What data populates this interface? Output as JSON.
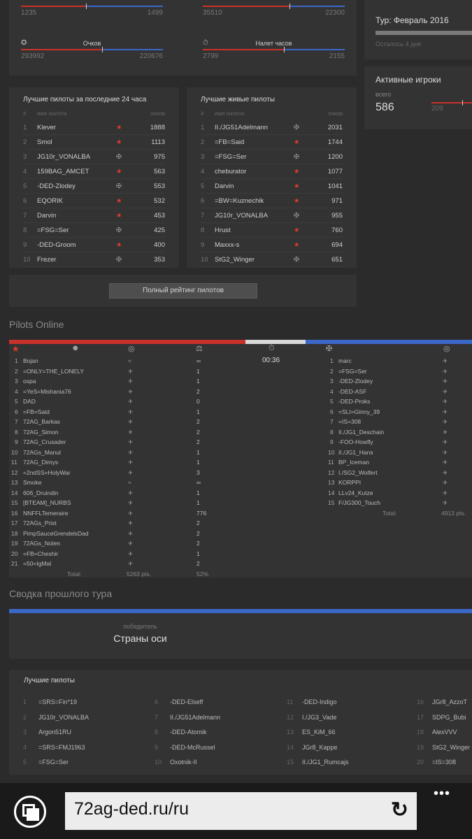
{
  "stats": [
    {
      "label": "",
      "left": "1235",
      "right": "1499",
      "red_fraction": 0.46,
      "icon": "medal-icon"
    },
    {
      "label": "",
      "left": "35510",
      "right": "22300",
      "red_fraction": 0.61,
      "icon": "timer-icon"
    },
    {
      "label": "Очков",
      "left": "293992",
      "right": "220676",
      "red_fraction": 0.57,
      "icon": "medal-icon"
    },
    {
      "label": "Налет часов",
      "left": "2799",
      "right": "2155",
      "red_fraction": 0.57,
      "icon": "timer-icon"
    }
  ],
  "tour": {
    "title": "Тур: Февраль 2016",
    "remaining": "Осталось 4 дня"
  },
  "active_players": {
    "title": "Активные игроки",
    "total_label": "всего",
    "total": "586",
    "red_count": "209"
  },
  "top24": {
    "title": "Лучшие пилоты за последние 24 часа",
    "col_num": "#",
    "col_name": "имя пилота",
    "col_score": "очков",
    "rows": [
      {
        "n": "1",
        "name": "Klever",
        "icon": "star",
        "score": "1888"
      },
      {
        "n": "2",
        "name": "Smol",
        "icon": "star",
        "score": "1113"
      },
      {
        "n": "3",
        "name": "JG10r_VONALBA",
        "icon": "cross",
        "score": "975"
      },
      {
        "n": "4",
        "name": "159BAG_AMCET",
        "icon": "star",
        "score": "563"
      },
      {
        "n": "5",
        "name": "-DED-Zlodey",
        "icon": "cross",
        "score": "553"
      },
      {
        "n": "6",
        "name": "EQORIK",
        "icon": "star",
        "score": "532"
      },
      {
        "n": "7",
        "name": "Darvin",
        "icon": "star",
        "score": "453"
      },
      {
        "n": "8",
        "name": "=FSG=Ser",
        "icon": "cross",
        "score": "425"
      },
      {
        "n": "9",
        "name": "-DED-Groom",
        "icon": "star",
        "score": "400"
      },
      {
        "n": "10",
        "name": "Frezer",
        "icon": "cross",
        "score": "353"
      }
    ]
  },
  "topalive": {
    "title": "Лучшие живые пилоты",
    "col_num": "#",
    "col_name": "имя пилота",
    "col_score": "очков",
    "rows": [
      {
        "n": "1",
        "name": "II./JG51Adelmann",
        "icon": "cross",
        "score": "2031"
      },
      {
        "n": "2",
        "name": "=FB=Said",
        "icon": "star",
        "score": "1744"
      },
      {
        "n": "3",
        "name": "=FSG=Ser",
        "icon": "cross",
        "score": "1200"
      },
      {
        "n": "4",
        "name": "cheburator",
        "icon": "star",
        "score": "1077"
      },
      {
        "n": "5",
        "name": "Darvin",
        "icon": "star",
        "score": "1041"
      },
      {
        "n": "6",
        "name": "=BW=Kuznechik",
        "icon": "star",
        "score": "971"
      },
      {
        "n": "7",
        "name": "JG10r_VONALBA",
        "icon": "cross",
        "score": "955"
      },
      {
        "n": "8",
        "name": "Hrust",
        "icon": "star",
        "score": "760"
      },
      {
        "n": "9",
        "name": "Maxxx-s",
        "icon": "star",
        "score": "694"
      },
      {
        "n": "10",
        "name": "StG2_Winger",
        "icon": "cross",
        "score": "651"
      }
    ]
  },
  "full_rating_button": "Полный рейтинг пилотов",
  "pilots_online": {
    "title": "Pilots Online",
    "timer": "00:36",
    "red_fraction": 0.51,
    "neutral_fraction": 0.13,
    "red": [
      {
        "n": "1",
        "name": "Bojan",
        "plane": "≈",
        "val": "∞"
      },
      {
        "n": "2",
        "name": "=ONLY=THE_LONELY",
        "plane": "✈",
        "val": "1"
      },
      {
        "n": "3",
        "name": "ospa",
        "plane": "✈",
        "val": "1"
      },
      {
        "n": "4",
        "name": "=YeS=Mishania76",
        "plane": "✈",
        "val": "2"
      },
      {
        "n": "5",
        "name": "DAD",
        "plane": "✈",
        "val": "0"
      },
      {
        "n": "6",
        "name": "=FB=Said",
        "plane": "✈",
        "val": "1"
      },
      {
        "n": "7",
        "name": "72AG_Barkas",
        "plane": "✈",
        "val": "2"
      },
      {
        "n": "8",
        "name": "72AG_Simon",
        "plane": "✈",
        "val": "2"
      },
      {
        "n": "9",
        "name": "72AG_Crusader",
        "plane": "✈",
        "val": "2"
      },
      {
        "n": "10",
        "name": "72AGs_Manul",
        "plane": "✈",
        "val": "1"
      },
      {
        "n": "11",
        "name": "72AG_Dimys",
        "plane": "✈",
        "val": "1"
      },
      {
        "n": "12",
        "name": "=2ndSS=HolyWar",
        "plane": "✈",
        "val": "3"
      },
      {
        "n": "13",
        "name": "Smoke",
        "plane": "≈",
        "val": "∞"
      },
      {
        "n": "14",
        "name": "606_Druindin",
        "plane": "✈",
        "val": "1"
      },
      {
        "n": "15",
        "name": "[BTEAM]_NURBS",
        "plane": "✈",
        "val": "1"
      },
      {
        "n": "16",
        "name": "NNFFLTemeraire",
        "plane": "✈",
        "val": "776"
      },
      {
        "n": "17",
        "name": "72AGs_Prist",
        "plane": "✈",
        "val": "2"
      },
      {
        "n": "18",
        "name": "PimpSauceGrendelsDad",
        "plane": "✈",
        "val": "2"
      },
      {
        "n": "19",
        "name": "72AGs_Nolen",
        "plane": "✈",
        "val": "2"
      },
      {
        "n": "20",
        "name": "=FB=Cheshir",
        "plane": "✈",
        "val": "1"
      },
      {
        "n": "21",
        "name": "=50=IgMal",
        "plane": "✈",
        "val": "2"
      }
    ],
    "red_total_label": "Total:",
    "red_total": "5263 pts.",
    "red_percent": "52%",
    "blue": [
      {
        "n": "1",
        "name": "marc"
      },
      {
        "n": "2",
        "name": "=FSG=Ser"
      },
      {
        "n": "3",
        "name": "-DED-Zlodey"
      },
      {
        "n": "4",
        "name": "-DED-ASF"
      },
      {
        "n": "5",
        "name": "-DED-Proks"
      },
      {
        "n": "6",
        "name": "=SLI=Ginny_39"
      },
      {
        "n": "7",
        "name": "=IS=308"
      },
      {
        "n": "8",
        "name": "II./JG1_Deschain"
      },
      {
        "n": "9",
        "name": "-FOO-Howfly"
      },
      {
        "n": "10",
        "name": "II./JG1_Hans"
      },
      {
        "n": "11",
        "name": "BP_Iceman"
      },
      {
        "n": "12",
        "name": "I./SG2_Wolfert"
      },
      {
        "n": "13",
        "name": "KORPPI"
      },
      {
        "n": "14",
        "name": "LLv24_Kutze"
      },
      {
        "n": "15",
        "name": "F/JG300_Touch"
      }
    ],
    "blue_total_label": "Total:",
    "blue_total": "4913 pts."
  },
  "summary": {
    "title": "Сводка прошлого тура",
    "winner_label": "победитель",
    "winner": "Страны оси"
  },
  "best_pilots": {
    "title": "Лучшие пилоты",
    "cols": [
      [
        {
          "n": "1",
          "name": "=SRS=Fin*19"
        },
        {
          "n": "2",
          "name": "JG10r_VONALBA"
        },
        {
          "n": "3",
          "name": "Argon51RU"
        },
        {
          "n": "4",
          "name": "=SRS=FMJ1963"
        },
        {
          "n": "5",
          "name": "=FSG=Ser"
        }
      ],
      [
        {
          "n": "6",
          "name": "-DED-Elseff"
        },
        {
          "n": "7",
          "name": "II./JG51Adelmann"
        },
        {
          "n": "8",
          "name": "-DED-Atomik"
        },
        {
          "n": "9",
          "name": "-DED-McRussel"
        },
        {
          "n": "10",
          "name": "Oxotnik-II"
        }
      ],
      [
        {
          "n": "11",
          "name": "-DED-Indigo"
        },
        {
          "n": "12",
          "name": "I./JG3_Vade"
        },
        {
          "n": "13",
          "name": "ES_KiM_66"
        },
        {
          "n": "14",
          "name": "JGr8_Kappe"
        },
        {
          "n": "15",
          "name": "II./JG1_Rumcajs"
        }
      ],
      [
        {
          "n": "16",
          "name": "JGr8_AzzoT"
        },
        {
          "n": "17",
          "name": "SDPG_Bubi"
        },
        {
          "n": "18",
          "name": "AlexVVV"
        },
        {
          "n": "19",
          "name": "StG2_Winger"
        },
        {
          "n": "20",
          "name": "=IS=308"
        }
      ]
    ]
  },
  "browser": {
    "url": "72ag-ded.ru/ru",
    "more": "•••"
  }
}
